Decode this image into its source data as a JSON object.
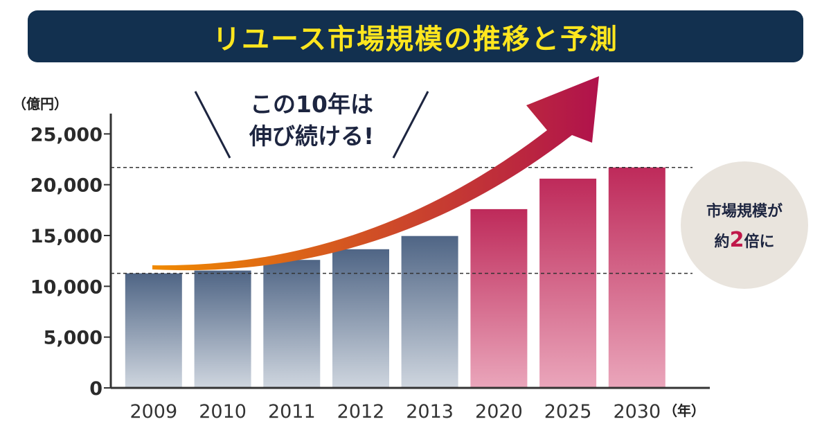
{
  "chart_data": {
    "type": "bar",
    "title": "リユース市場規模の推移と予測",
    "ylabel": "（億円）",
    "xlabel": "（年）",
    "categories": [
      "2009",
      "2010",
      "2011",
      "2012",
      "2013",
      "2020",
      "2025",
      "2030"
    ],
    "values": [
      11274,
      11550,
      12600,
      13650,
      14950,
      17600,
      20600,
      21700
    ],
    "segments": [
      "actual",
      "actual",
      "actual",
      "actual",
      "actual",
      "forecast",
      "forecast",
      "forecast"
    ],
    "ylim": [
      0,
      27000
    ],
    "yticks": [
      0,
      5000,
      10000,
      15000,
      20000,
      25000
    ],
    "ytick_labels": [
      "0",
      "5,000",
      "10,000",
      "15,000",
      "20,000",
      "25,000"
    ],
    "reference_lines": [
      11274,
      21700
    ],
    "annotation": {
      "line1": "この10年は",
      "line2": "伸び続ける!"
    },
    "badge": {
      "line1": "市場規模が",
      "prefix": "約",
      "number": "2",
      "suffix": "倍に"
    },
    "colors": {
      "title_bg": "#12304f",
      "title_text": "#ffe61e",
      "actual_top": "#4f6585",
      "actual_bottom": "#cfd6df",
      "forecast_top": "#be2a5a",
      "forecast_bottom": "#eaa6bb",
      "arrow_start": "#f08a00",
      "arrow_end": "#b0124c",
      "badge_bg": "#e9e4dd"
    }
  }
}
